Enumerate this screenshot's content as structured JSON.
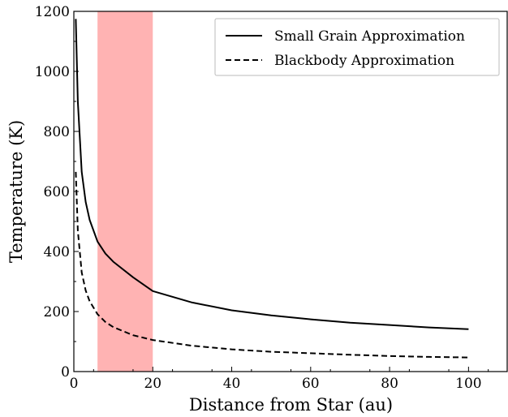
{
  "chart_data": {
    "type": "line",
    "xlabel": "Distance from Star (au)",
    "ylabel": "Temperature (K)",
    "xlim": [
      0,
      110
    ],
    "ylim": [
      0,
      1200
    ],
    "xticks": [
      0,
      20,
      40,
      60,
      80,
      100
    ],
    "yticks": [
      0,
      200,
      400,
      600,
      800,
      1000,
      1200
    ],
    "grid": false,
    "legend_position": "top-right",
    "shaded_region": {
      "x_start": 6,
      "x_end": 20,
      "color": "#ffb3b3"
    },
    "series": [
      {
        "name": "Small Grain Approximation",
        "style": "solid",
        "color": "#000000",
        "x": [
          0.5,
          1,
          2,
          3,
          4,
          6,
          8,
          10,
          15,
          20,
          30,
          40,
          50,
          60,
          70,
          80,
          90,
          100
        ],
        "y": [
          1175,
          900,
          665,
          565,
          505,
          433,
          393,
          366,
          314,
          268,
          230,
          204,
          187,
          174,
          163,
          155,
          147,
          141
        ]
      },
      {
        "name": "Blackbody Approximation",
        "style": "dashed",
        "color": "#000000",
        "x": [
          0.5,
          1,
          2,
          3,
          4,
          6,
          8,
          10,
          15,
          20,
          30,
          40,
          50,
          60,
          70,
          80,
          90,
          100
        ],
        "y": [
          665,
          470,
          330,
          270,
          234,
          191,
          165,
          148,
          121,
          105,
          86,
          74,
          66,
          61,
          56,
          52,
          49,
          47
        ]
      }
    ]
  }
}
